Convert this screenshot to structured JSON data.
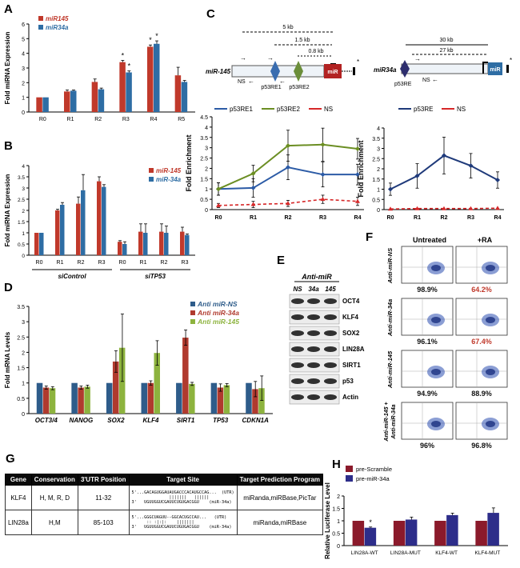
{
  "panels": {
    "A": "A",
    "B": "B",
    "C": "C",
    "D": "D",
    "E": "E",
    "F": "F",
    "G": "G",
    "H": "H"
  },
  "chart_data": [
    {
      "id": "A",
      "type": "bar",
      "ylabel": "Fold miRNA Expression",
      "ylim": [
        0,
        6
      ],
      "yticks": [
        "0",
        "1",
        "2",
        "3",
        "4",
        "5",
        "6"
      ],
      "categories": [
        "R0",
        "R1",
        "R2",
        "R3",
        "R4",
        "R5"
      ],
      "series": [
        {
          "name": "miR145",
          "color": "#c0392b",
          "values": [
            1.0,
            1.4,
            2.05,
            3.4,
            4.45,
            2.5
          ],
          "err": [
            0,
            0.1,
            0.2,
            0.12,
            0.12,
            0.55
          ]
        },
        {
          "name": "miR34a",
          "color": "#2e6da4",
          "values": [
            1.0,
            1.45,
            1.55,
            2.7,
            4.65,
            2.05
          ],
          "err": [
            0,
            0.05,
            0.08,
            0.1,
            0.2,
            0.1
          ]
        }
      ],
      "stars": [
        "*",
        "*",
        "*",
        "*"
      ]
    },
    {
      "id": "B",
      "type": "bar",
      "ylabel": "Fold miRNA Expression",
      "ylim": [
        0,
        4
      ],
      "yticks": [
        "0",
        "0.5",
        "1",
        "1.5",
        "2",
        "2.5",
        "3",
        "3.5",
        "4"
      ],
      "categories": [
        "R0",
        "R1",
        "R2",
        "R3",
        "R0",
        "R1",
        "R2",
        "R3"
      ],
      "groups": [
        "siControl",
        "siTP53"
      ],
      "series": [
        {
          "name": "miR-145",
          "color": "#c0392b",
          "values": [
            1.0,
            2.0,
            2.3,
            3.3,
            0.6,
            1.05,
            1.05,
            1.05
          ],
          "err": [
            0,
            0.05,
            0.3,
            0.2,
            0.05,
            0.35,
            0.35,
            0.2
          ]
        },
        {
          "name": "miR-34a",
          "color": "#2e6da4",
          "values": [
            1.0,
            2.25,
            2.9,
            3.05,
            0.5,
            1.0,
            1.0,
            0.9
          ],
          "err": [
            0,
            0.1,
            0.7,
            0.1,
            0.1,
            0.4,
            0.3,
            0.05
          ]
        }
      ]
    },
    {
      "id": "C1",
      "type": "line",
      "ylabel": "Fold Enrichment",
      "ylim": [
        0,
        4.5
      ],
      "yticks": [
        "0",
        "0.5",
        "1",
        "1.5",
        "2",
        "2.5",
        "3",
        "3.5",
        "4",
        "4.5"
      ],
      "categories": [
        "R0",
        "R1",
        "R2",
        "R3",
        "R4"
      ],
      "series": [
        {
          "name": "p53RE1",
          "color": "#2c5ba6",
          "values": [
            1.0,
            1.05,
            2.05,
            1.7,
            1.7
          ],
          "err": [
            0.3,
            0.45,
            0.6,
            0.6,
            0.5
          ]
        },
        {
          "name": "p53RE2",
          "color": "#6b8e23",
          "values": [
            1.0,
            1.75,
            3.1,
            3.15,
            2.95
          ],
          "err": [
            0.3,
            0.4,
            0.75,
            0.8,
            0.5
          ]
        },
        {
          "name": "NS",
          "color": "#d62728",
          "values": [
            0.2,
            0.25,
            0.3,
            0.5,
            0.4
          ],
          "err": [
            0.1,
            0.15,
            0.15,
            0.2,
            0.2
          ]
        }
      ]
    },
    {
      "id": "C2",
      "type": "line",
      "ylabel": "Fold Enrichment",
      "ylim": [
        0,
        4
      ],
      "yticks": [
        "0",
        "0.5",
        "1",
        "1.5",
        "2",
        "2.5",
        "3",
        "3.5",
        "4"
      ],
      "categories": [
        "R0",
        "R1",
        "R2",
        "R3",
        "R4"
      ],
      "series": [
        {
          "name": "p53RE",
          "color": "#1f3a7a",
          "values": [
            1.0,
            1.65,
            2.65,
            2.15,
            1.45
          ],
          "err": [
            0.3,
            0.6,
            0.9,
            0.6,
            0.4
          ]
        },
        {
          "name": "NS",
          "color": "#d62728",
          "values": [
            0.03,
            0.05,
            0.05,
            0.05,
            0.07
          ],
          "err": [
            0,
            0,
            0,
            0,
            0
          ]
        }
      ]
    },
    {
      "id": "D",
      "type": "bar",
      "ylabel": "Fold mRNA Levels",
      "ylim": [
        0,
        3.5
      ],
      "yticks": [
        "0",
        "0.5",
        "1",
        "1.5",
        "2",
        "2.5",
        "3",
        "3.5"
      ],
      "categories": [
        "OCT3/4",
        "NANOG",
        "SOX2",
        "KLF4",
        "SIRT1",
        "TP53",
        "CDKN1A"
      ],
      "series": [
        {
          "name": "Anti miR-NS",
          "color": "#2e5c8a",
          "values": [
            1.0,
            1.0,
            1.0,
            1.0,
            1.0,
            1.0,
            1.0
          ],
          "err": [
            0,
            0,
            0,
            0,
            0,
            0,
            0
          ]
        },
        {
          "name": "Anti miR-34a",
          "color": "#b03a2e",
          "values": [
            0.85,
            0.85,
            1.7,
            1.0,
            2.48,
            0.85,
            0.8
          ],
          "err": [
            0.05,
            0.05,
            0.35,
            0.07,
            0.25,
            0.12,
            0.25
          ]
        },
        {
          "name": "Anti miR-145",
          "color": "#8db33e",
          "values": [
            0.83,
            0.88,
            2.15,
            1.98,
            0.97,
            0.93,
            0.83
          ],
          "err": [
            0.05,
            0.05,
            1.1,
            0.4,
            0.05,
            0.05,
            0.4
          ]
        }
      ]
    },
    {
      "id": "H",
      "type": "bar",
      "ylabel": "Relative Luciferase Level",
      "ylim": [
        0,
        2
      ],
      "yticks": [
        "0",
        "0.5",
        "1",
        "1.5",
        "2"
      ],
      "categories": [
        "LIN28A-WT",
        "LIN28A-MUT",
        "KLF4-WT",
        "KLF4-MUT"
      ],
      "series": [
        {
          "name": "pre-Scramble",
          "color": "#8b1a2b",
          "values": [
            1.0,
            1.0,
            1.0,
            1.0
          ],
          "err": [
            0,
            0,
            0,
            0
          ]
        },
        {
          "name": "pre-miR-34a",
          "color": "#2d2d8a",
          "values": [
            0.72,
            1.05,
            1.23,
            1.32
          ],
          "err": [
            0.03,
            0.1,
            0.08,
            0.2
          ]
        }
      ],
      "stars": [
        "*"
      ]
    }
  ],
  "b_groups": {
    "siControl": "siControl",
    "siTP53": "siTP53"
  },
  "diagram": {
    "left": {
      "gene": "miR-145",
      "dist1": "5 kb",
      "dist2": "1.5 kb",
      "dist3": "0.8 kb",
      "re1": "p53RE1",
      "re2": "p53RE2",
      "ns": "NS",
      "mir": "miR",
      "star": "*"
    },
    "right": {
      "gene": "miR34a",
      "dist1": "30 kb",
      "dist2": "27 kb",
      "re": "p53RE",
      "ns": "NS",
      "mir": "miR",
      "star": "*"
    }
  },
  "blot": {
    "header": "Anti-miR",
    "lanes": [
      "NS",
      "34a",
      "145"
    ],
    "proteins": [
      "OCT4",
      "KLF4",
      "SOX2",
      "LIN28A",
      "SIRT1",
      "p53",
      "Actin"
    ]
  },
  "flow": {
    "cols": [
      "Untreated",
      "+RA"
    ],
    "rows": [
      {
        "label": "Anti-miR-NS",
        "vals": [
          "98.9%",
          "64.2%"
        ],
        "colors": [
          "#111111",
          "#c0392b"
        ]
      },
      {
        "label": "Anti-miR-34a",
        "vals": [
          "96.1%",
          "67.4%"
        ],
        "colors": [
          "#111111",
          "#c0392b"
        ]
      },
      {
        "label": "Anti-miR-145",
        "vals": [
          "94.9%",
          "88.9%"
        ],
        "colors": [
          "#111111",
          "#111111"
        ]
      },
      {
        "label": "Anti-miR-145 + Anti-miR-34a",
        "vals": [
          "96%",
          "96.8%"
        ],
        "colors": [
          "#111111",
          "#111111"
        ]
      }
    ]
  },
  "table": {
    "headers": [
      "Gene",
      "Conservation",
      "3'UTR Position",
      "Target Site",
      "Target Prediction Program"
    ],
    "rows": [
      {
        "gene": "KLF4",
        "cons": "H, M, R, D",
        "pos": "11-32",
        "site": "5'...GACAGUGGAUAUGACCCACAUGCCAG...  (UTR)\n               |||||||   ||||||\n3'   UGUUGGUCGAUUCUGUGACGGU    (miR-34a)",
        "prog": "miRanda,miRBase,PicTar"
      },
      {
        "gene": "LIN28a",
        "cons": "H,M",
        "pos": "85-103",
        "site": "5'...GGGCUAGUU--GGCACUGCCAU...   (UTR)\n      :: :|:|:    |||||||\n3'   UGUUGGUCGAUUCUGUGACGGU    (miR-34a)",
        "prog": "miRanda,miRBase"
      }
    ]
  }
}
